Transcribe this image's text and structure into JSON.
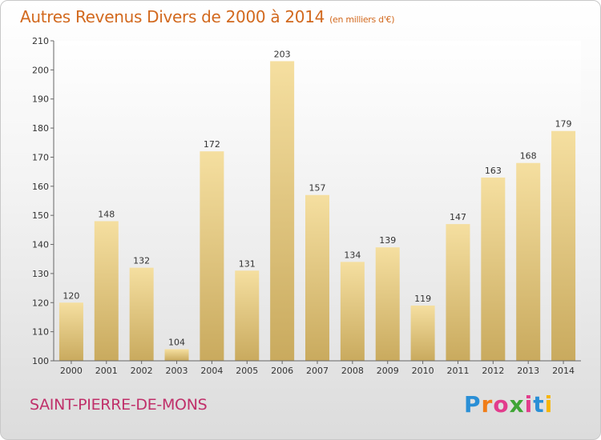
{
  "header": {
    "title": "Autres Revenus Divers de 2000 à 2014",
    "unit": "(en milliers d'€)"
  },
  "footer": {
    "town": "SAINT-PIERRE-DE-MONS",
    "logo_letters": [
      "P",
      "r",
      "o",
      "x",
      "i",
      "t",
      "i"
    ],
    "logo_colors": [
      "#2a8fd6",
      "#f07d18",
      "#e23c8c",
      "#3fa535",
      "#e23c8c",
      "#2a8fd6",
      "#f7b500"
    ]
  },
  "chart_data": {
    "type": "bar",
    "title": "Autres Revenus Divers de 2000 à 2014",
    "categories": [
      "2000",
      "2001",
      "2002",
      "2003",
      "2004",
      "2005",
      "2006",
      "2007",
      "2008",
      "2009",
      "2010",
      "2011",
      "2012",
      "2013",
      "2014"
    ],
    "values": [
      120,
      148,
      132,
      104,
      172,
      131,
      203,
      157,
      134,
      139,
      119,
      147,
      163,
      168,
      179
    ],
    "ylim": [
      100,
      210
    ],
    "yticks": [
      100,
      110,
      120,
      130,
      140,
      150,
      160,
      170,
      180,
      190,
      200,
      210
    ],
    "grid": false,
    "bar_color_light": "#f5dfa0",
    "bar_color_dark": "#c9aa5e"
  }
}
